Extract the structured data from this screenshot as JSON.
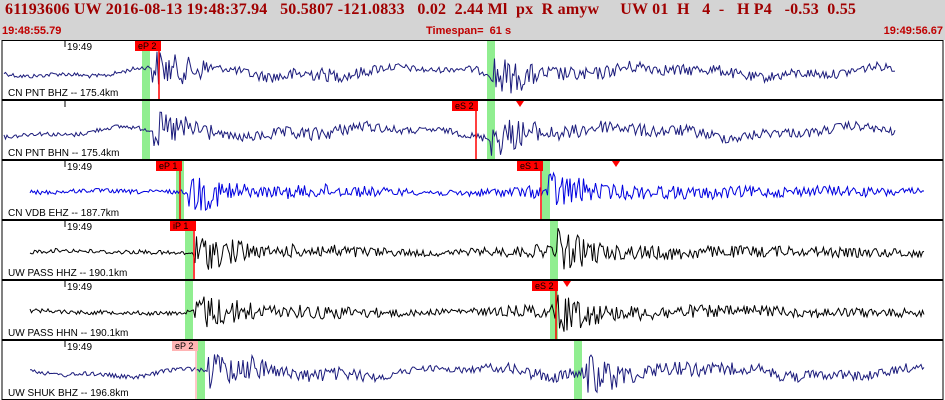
{
  "header": {
    "title": "61193606 UW 2016-08-13 19:48:37.94   50.5807 -121.0833   0.02  2.44 Ml  px  R amyw     UW 01  H   4  -   H P4   -0.53  0.55",
    "start_time": "19:48:55.79",
    "timespan": "Timespan=  61 s",
    "end_time": "19:49:56.67"
  },
  "colors": {
    "panel_bg": "#d4d4d4",
    "header_text": "#a00000",
    "pick_marker": "#ff0000",
    "pick_marker_faded": "#ffb4b4",
    "window_band": "#90ee90",
    "trace_navy": "#1c1c7c",
    "trace_blue": "#0000e0",
    "trace_black": "#000000"
  },
  "channels": [
    {
      "label": "CN PNT BHZ -- 175.4km",
      "tick_label": "19:49",
      "trace_color": "navy",
      "picks": [
        {
          "label": "eP 2",
          "faded": false,
          "t": 0.143
        }
      ],
      "bands": [
        0.155,
        0.52
      ],
      "onset": 0.16,
      "s_onset": 0.52
    },
    {
      "label": "CN PNT BHN -- 175.4km",
      "tick_label": "",
      "trace_color": "navy",
      "picks": [
        {
          "label": "eS 2",
          "faded": false,
          "t": 0.478
        }
      ],
      "bands": [
        0.155,
        0.52
      ],
      "onset": 0.16,
      "s_onset": 0.52,
      "amp_marker": 0.55
    },
    {
      "label": "CN VDB EHZ -- 187.7km",
      "tick_label": "19:49",
      "trace_color": "blue",
      "picks": [
        {
          "label": "eP 1",
          "faded": false,
          "t": 0.165
        },
        {
          "label": "eS 1",
          "faded": false,
          "t": 0.547
        }
      ],
      "bands": [
        0.19,
        0.578
      ],
      "onset": 0.2,
      "s_onset": 0.58,
      "amp_marker": 0.652
    },
    {
      "label": "UW PASS HHZ -- 190.1km",
      "tick_label": "19:49",
      "trace_color": "black",
      "picks": [
        {
          "label": "iP 1",
          "faded": false,
          "t": 0.18
        }
      ],
      "bands": [
        0.2,
        0.586
      ],
      "onset": 0.205,
      "s_onset": 0.59
    },
    {
      "label": "UW PASS HHN -- 190.1km",
      "tick_label": "19:49",
      "trace_color": "black",
      "picks": [
        {
          "label": "eS 2",
          "faded": false,
          "t": 0.563
        }
      ],
      "bands": [
        0.2,
        0.586
      ],
      "onset": 0.205,
      "s_onset": 0.59,
      "amp_marker": 0.6
    },
    {
      "label": "UW SHUK BHZ -- 196.8km",
      "tick_label": "19:49",
      "trace_color": "navy",
      "picks": [
        {
          "label": "eP 2",
          "faded": true,
          "t": 0.182
        }
      ],
      "bands": [
        0.213,
        0.612
      ],
      "onset": 0.22,
      "s_onset": 0.62
    }
  ]
}
